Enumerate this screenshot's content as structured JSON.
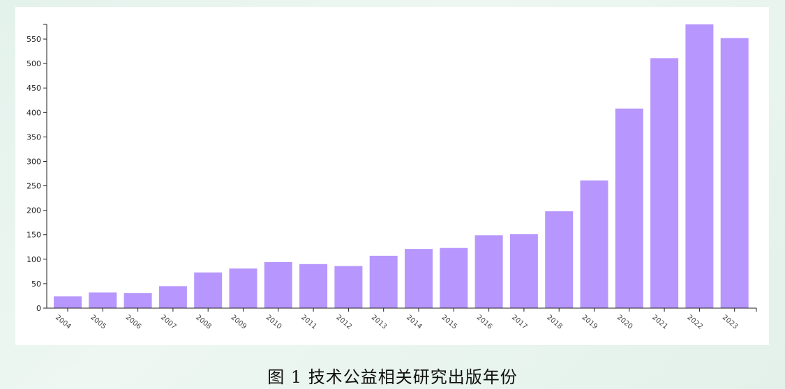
{
  "caption": "图  1  技术公益相关研究出版年份",
  "chart_data": {
    "type": "bar",
    "categories": [
      "2004",
      "2005",
      "2006",
      "2007",
      "2008",
      "2009",
      "2010",
      "2011",
      "2012",
      "2013",
      "2014",
      "2015",
      "2016",
      "2017",
      "2018",
      "2019",
      "2020",
      "2021",
      "2022",
      "2023"
    ],
    "values": [
      24,
      32,
      31,
      45,
      73,
      81,
      94,
      90,
      86,
      107,
      121,
      123,
      149,
      151,
      198,
      261,
      408,
      511,
      580,
      552
    ],
    "title": "",
    "xlabel": "",
    "ylabel": "",
    "ylim": [
      0,
      580
    ],
    "yticks": [
      0,
      50,
      100,
      150,
      200,
      250,
      300,
      350,
      400,
      450,
      500,
      550
    ],
    "grid": false,
    "bar_color": "#b797fd",
    "axis_color": "#222222"
  }
}
